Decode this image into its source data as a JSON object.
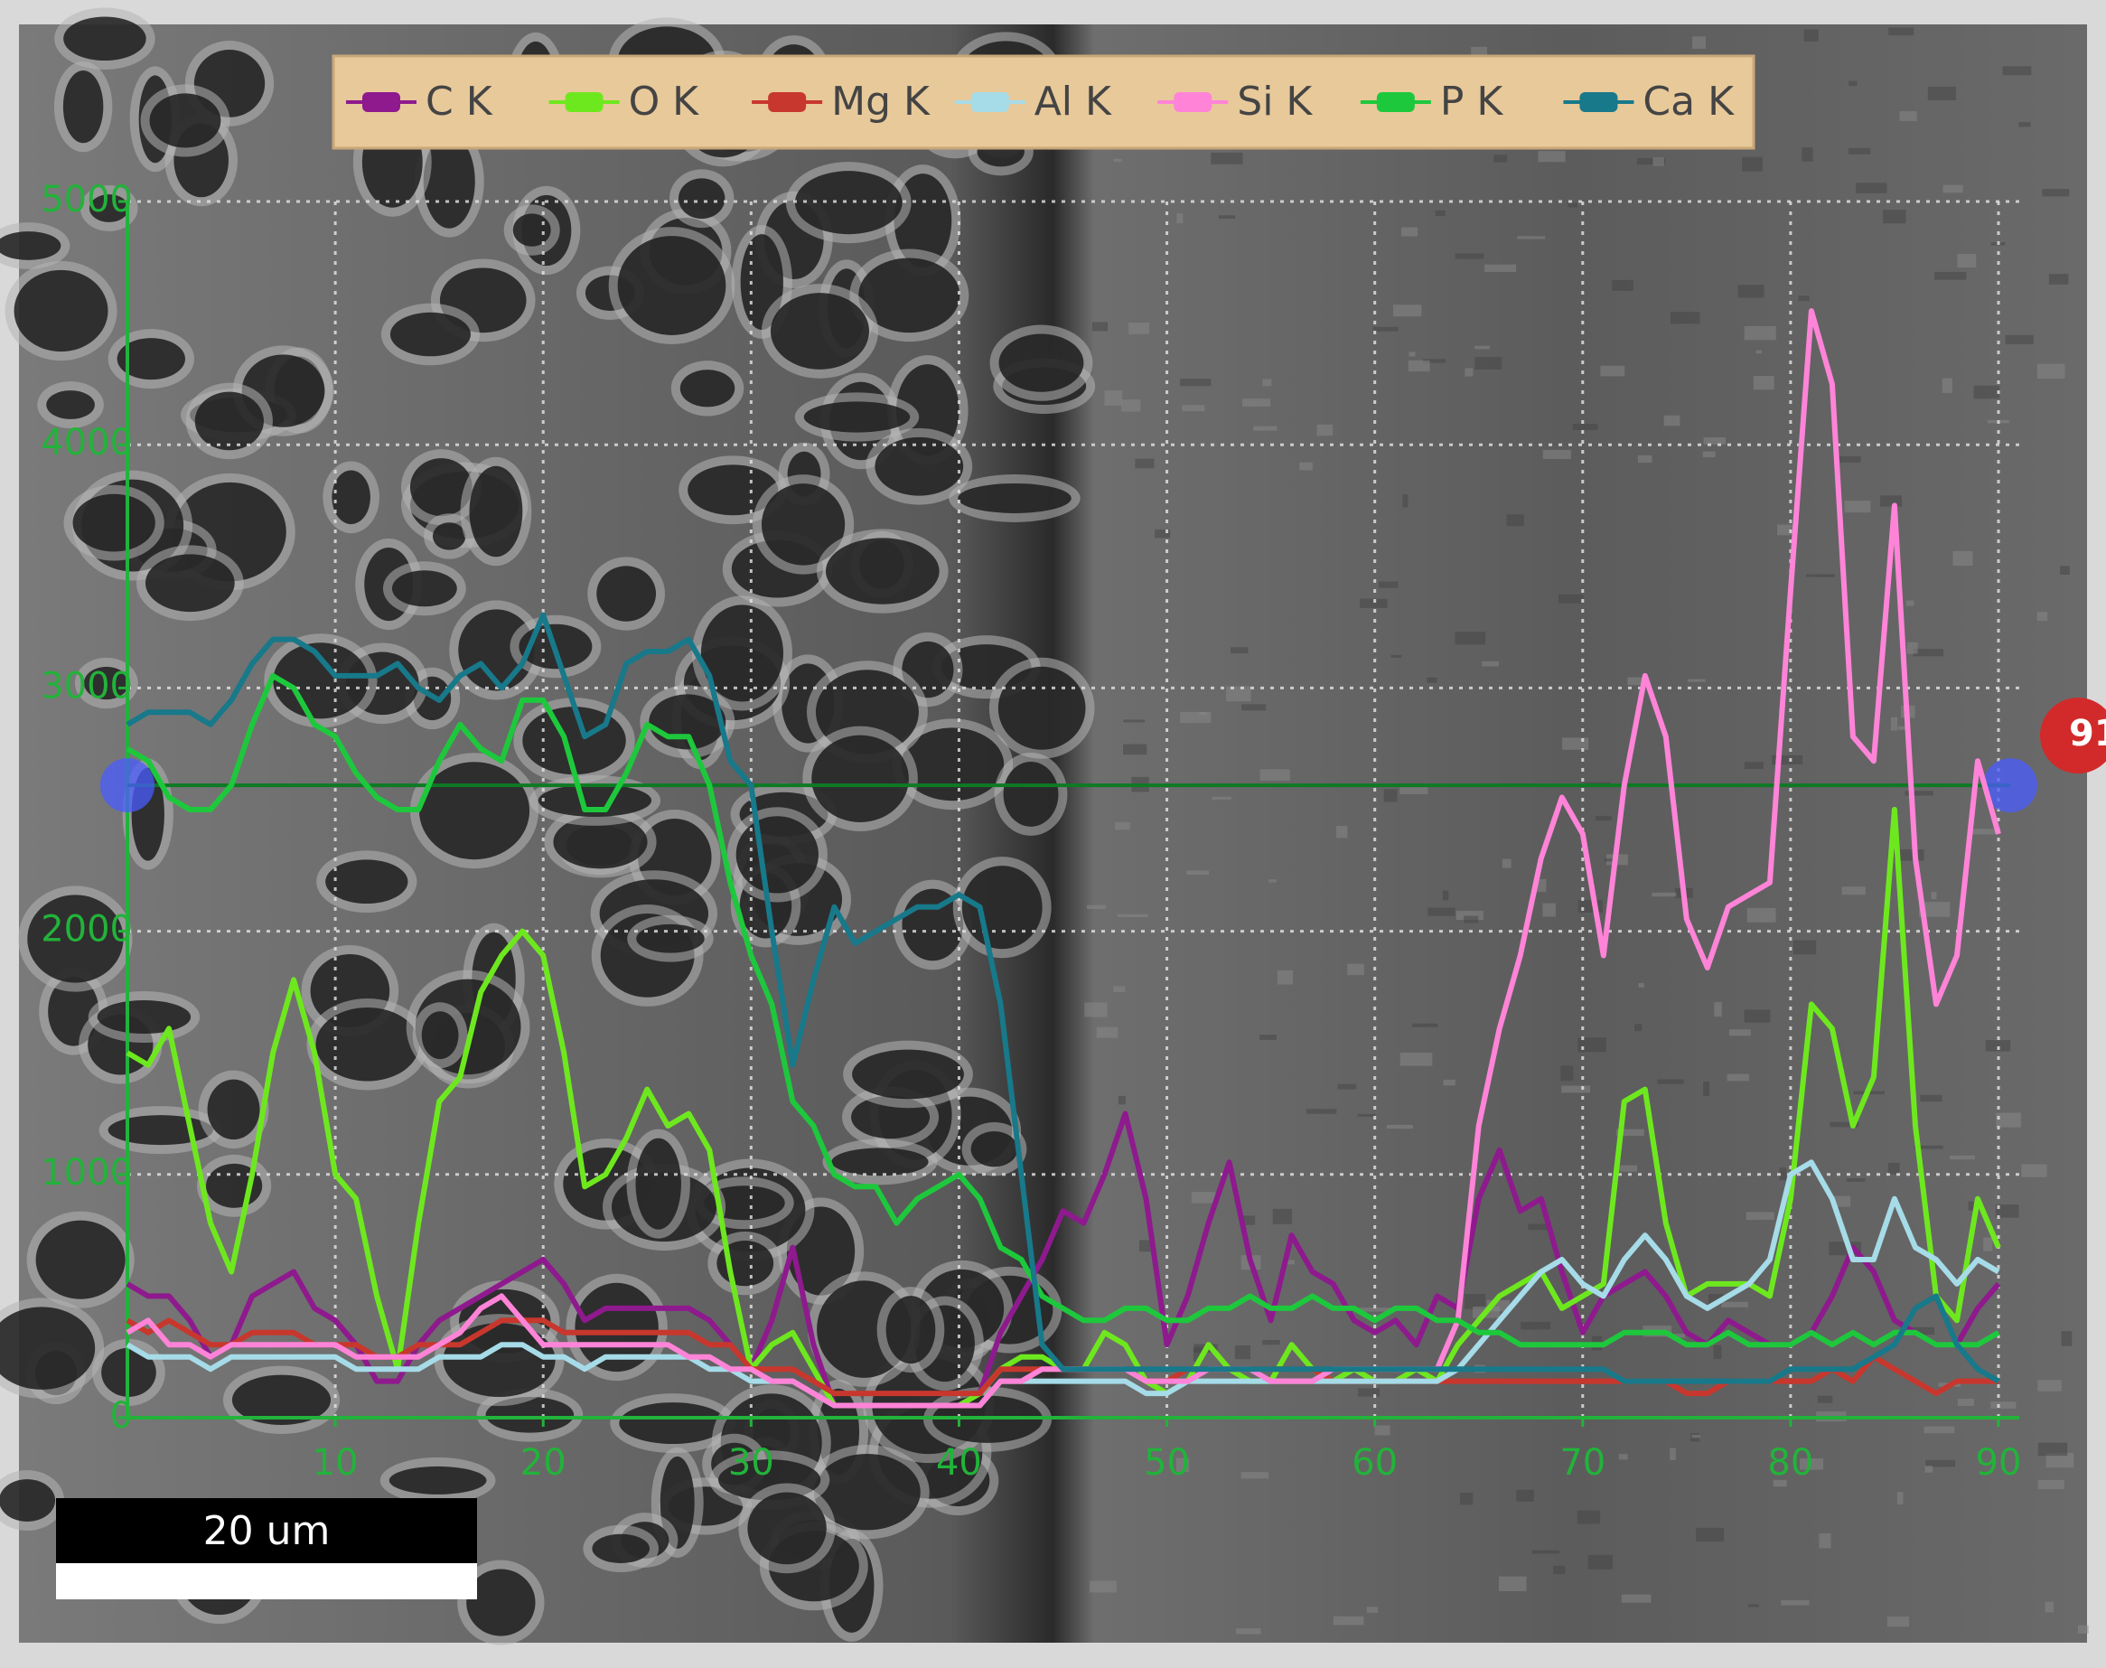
{
  "chart_data": {
    "type": "line",
    "x": [
      0,
      1,
      2,
      3,
      4,
      5,
      6,
      7,
      8,
      9,
      10,
      11,
      12,
      13,
      14,
      15,
      16,
      17,
      18,
      19,
      20,
      21,
      22,
      23,
      24,
      25,
      26,
      27,
      28,
      29,
      30,
      31,
      32,
      33,
      34,
      35,
      36,
      37,
      38,
      39,
      40,
      41,
      42,
      43,
      44,
      45,
      46,
      47,
      48,
      49,
      50,
      51,
      52,
      53,
      54,
      55,
      56,
      57,
      58,
      59,
      60,
      61,
      62,
      63,
      64,
      65,
      66,
      67,
      68,
      69,
      70,
      71,
      72,
      73,
      74,
      75,
      76,
      77,
      78,
      79,
      80,
      81,
      82,
      83,
      84,
      85,
      86,
      87,
      88,
      89,
      90
    ],
    "series": [
      {
        "name": "C K",
        "color": "#8e1a8e",
        "values": [
          550,
          500,
          500,
          400,
          250,
          300,
          500,
          550,
          600,
          450,
          400,
          300,
          150,
          150,
          300,
          400,
          450,
          500,
          550,
          600,
          650,
          550,
          400,
          450,
          450,
          450,
          450,
          450,
          400,
          300,
          200,
          400,
          700,
          300,
          50,
          50,
          50,
          50,
          50,
          50,
          50,
          100,
          350,
          500,
          650,
          850,
          800,
          1000,
          1250,
          900,
          300,
          500,
          800,
          1050,
          650,
          400,
          750,
          600,
          550,
          400,
          350,
          400,
          300,
          500,
          450,
          900,
          1100,
          850,
          900,
          600,
          350,
          500,
          550,
          600,
          500,
          350,
          300,
          400,
          350,
          300,
          300,
          350,
          500,
          700,
          600,
          400,
          350,
          300,
          300,
          450,
          550
        ]
      },
      {
        "name": "O K",
        "color": "#6ee81e",
        "values": [
          1500,
          1450,
          1600,
          1200,
          800,
          600,
          1000,
          1500,
          1800,
          1500,
          1000,
          900,
          500,
          200,
          800,
          1300,
          1400,
          1750,
          1900,
          2000,
          1900,
          1500,
          950,
          1000,
          1150,
          1350,
          1200,
          1250,
          1100,
          600,
          200,
          300,
          350,
          200,
          50,
          50,
          50,
          50,
          50,
          50,
          50,
          100,
          200,
          250,
          250,
          200,
          200,
          350,
          300,
          150,
          100,
          150,
          300,
          200,
          150,
          150,
          300,
          200,
          150,
          200,
          150,
          150,
          200,
          150,
          300,
          400,
          500,
          550,
          600,
          450,
          500,
          550,
          1300,
          1350,
          800,
          500,
          550,
          550,
          550,
          500,
          900,
          1700,
          1600,
          1200,
          1400,
          2500,
          1200,
          500,
          400,
          900,
          700
        ]
      },
      {
        "name": "Mg K",
        "color": "#c8372d",
        "values": [
          400,
          350,
          400,
          350,
          300,
          300,
          350,
          350,
          350,
          300,
          300,
          300,
          250,
          250,
          300,
          300,
          300,
          350,
          400,
          400,
          400,
          350,
          350,
          350,
          350,
          350,
          350,
          350,
          300,
          300,
          200,
          200,
          200,
          150,
          100,
          100,
          100,
          100,
          100,
          100,
          100,
          100,
          200,
          200,
          200,
          200,
          200,
          200,
          200,
          150,
          150,
          200,
          200,
          200,
          200,
          200,
          200,
          200,
          150,
          150,
          150,
          150,
          150,
          150,
          150,
          150,
          150,
          150,
          150,
          150,
          150,
          150,
          150,
          150,
          150,
          100,
          100,
          150,
          150,
          150,
          150,
          150,
          200,
          150,
          250,
          200,
          150,
          100,
          150,
          150,
          150
        ]
      },
      {
        "name": "Al K",
        "color": "#a6dbe8",
        "values": [
          300,
          250,
          250,
          250,
          200,
          250,
          250,
          250,
          250,
          250,
          250,
          200,
          200,
          200,
          200,
          250,
          250,
          250,
          300,
          300,
          250,
          250,
          200,
          250,
          250,
          250,
          250,
          250,
          200,
          200,
          150,
          150,
          150,
          100,
          50,
          50,
          50,
          50,
          50,
          50,
          50,
          50,
          150,
          150,
          150,
          150,
          150,
          150,
          150,
          100,
          100,
          150,
          150,
          150,
          150,
          150,
          150,
          150,
          150,
          150,
          150,
          150,
          150,
          150,
          200,
          300,
          400,
          500,
          600,
          650,
          550,
          500,
          650,
          750,
          650,
          500,
          450,
          500,
          550,
          650,
          1000,
          1050,
          900,
          650,
          650,
          900,
          700,
          650,
          550,
          650,
          600
        ]
      },
      {
        "name": "Si K",
        "color": "#ff84d8",
        "values": [
          350,
          400,
          300,
          300,
          250,
          300,
          300,
          300,
          300,
          300,
          300,
          250,
          250,
          250,
          250,
          300,
          350,
          450,
          500,
          400,
          300,
          300,
          300,
          300,
          300,
          300,
          300,
          250,
          250,
          200,
          200,
          150,
          150,
          100,
          50,
          50,
          50,
          50,
          50,
          50,
          50,
          50,
          150,
          150,
          200,
          200,
          200,
          200,
          200,
          150,
          150,
          150,
          200,
          200,
          200,
          150,
          150,
          150,
          200,
          200,
          200,
          200,
          200,
          200,
          400,
          1200,
          1600,
          1900,
          2300,
          2550,
          2400,
          1900,
          2600,
          3050,
          2800,
          2050,
          1850,
          2100,
          2150,
          2200,
          3400,
          4550,
          4250,
          2800,
          2700,
          3750,
          2300,
          1700,
          1900,
          2700,
          2400
        ]
      },
      {
        "name": "P K",
        "color": "#1ec83c",
        "values": [
          2750,
          2700,
          2550,
          2500,
          2500,
          2600,
          2850,
          3050,
          3000,
          2850,
          2800,
          2650,
          2550,
          2500,
          2500,
          2700,
          2850,
          2750,
          2700,
          2950,
          2950,
          2800,
          2500,
          2500,
          2650,
          2850,
          2800,
          2800,
          2600,
          2200,
          1900,
          1700,
          1300,
          1200,
          1000,
          950,
          950,
          800,
          900,
          950,
          1000,
          900,
          700,
          650,
          500,
          450,
          400,
          400,
          450,
          450,
          400,
          400,
          450,
          450,
          500,
          450,
          450,
          500,
          450,
          450,
          400,
          450,
          450,
          400,
          400,
          350,
          350,
          300,
          300,
          300,
          300,
          300,
          350,
          350,
          350,
          300,
          300,
          350,
          300,
          300,
          300,
          350,
          300,
          350,
          300,
          350,
          350,
          300,
          300,
          300,
          350
        ]
      },
      {
        "name": "Ca K",
        "color": "#17798a",
        "values": [
          2850,
          2900,
          2900,
          2900,
          2850,
          2950,
          3100,
          3200,
          3200,
          3150,
          3050,
          3050,
          3050,
          3100,
          3000,
          2950,
          3050,
          3100,
          3000,
          3100,
          3300,
          3050,
          2800,
          2850,
          3100,
          3150,
          3150,
          3200,
          3050,
          2700,
          2600,
          2000,
          1450,
          1800,
          2100,
          1950,
          2000,
          2050,
          2100,
          2100,
          2150,
          2100,
          1700,
          1000,
          300,
          200,
          200,
          200,
          200,
          200,
          200,
          200,
          200,
          200,
          200,
          200,
          200,
          200,
          200,
          200,
          200,
          200,
          200,
          200,
          200,
          200,
          200,
          200,
          200,
          200,
          200,
          200,
          150,
          150,
          150,
          150,
          150,
          150,
          150,
          150,
          200,
          200,
          200,
          200,
          250,
          300,
          450,
          500,
          300,
          200,
          150
        ]
      }
    ],
    "xlim": [
      0,
      91
    ],
    "ylim": [
      0,
      5000
    ],
    "xticks": [
      10,
      20,
      30,
      40,
      50,
      60,
      70,
      80,
      90
    ],
    "yticks": [
      0,
      1000,
      2000,
      3000,
      4000,
      5000
    ],
    "grid": true,
    "legend": "top",
    "cursor_y": 2600,
    "cursor_label": "91",
    "scale_bar": "20 um"
  }
}
